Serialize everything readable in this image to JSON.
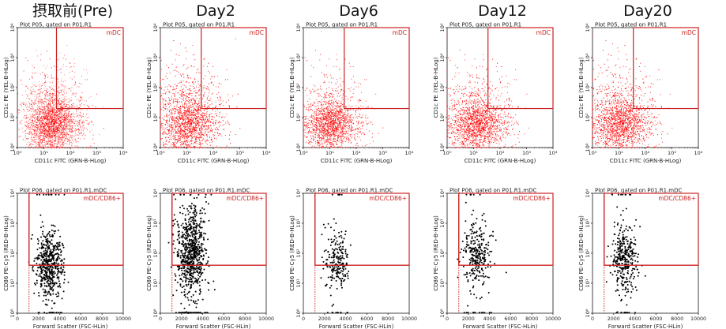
{
  "chart_data": [
    {
      "type": "scatter",
      "title": "摂取前(Pre)",
      "panels": [
        {
          "plot_title": "Plot P05, gated on P01.R1",
          "xlabel": "CD11c FITC (GRN-B-HLog)",
          "ylabel": "CD1c PE (YEL-B-HLog)",
          "xscale": "log",
          "yscale": "log",
          "xlim": [
            1,
            10000
          ],
          "ylim": [
            1,
            10000
          ],
          "x_ticks": [
            "10⁰",
            "10¹",
            "10²",
            "10³",
            "10⁴"
          ],
          "y_ticks": [
            "10⁰",
            "10¹",
            "10²",
            "10³",
            "10⁴"
          ],
          "gate": {
            "label": "mDC",
            "x_min": 30,
            "y_min": 20
          },
          "point_color": "#ff0000",
          "population": {
            "center": [
              18,
              6
            ],
            "spread": [
              0.45,
              0.45
            ],
            "count": 4000,
            "upper_tail": 0.12
          }
        },
        {
          "plot_title": "Plot P06, gated on P01.R1.mDC",
          "xlabel": "Forward Scatter (FSC-HLin)",
          "ylabel": "CD86 PE-Cy5 (RED-B-HLog)",
          "xscale": "linear",
          "yscale": "log",
          "xlim": [
            0,
            10000
          ],
          "ylim": [
            1,
            10000
          ],
          "x_ticks": [
            "0",
            "2000",
            "4000",
            "6000",
            "8000",
            "10000"
          ],
          "y_ticks": [
            "10⁰",
            "10¹",
            "10²",
            "10³",
            "10⁴"
          ],
          "gate": {
            "label": "mDC/CD86+",
            "x_min": 1100,
            "y_min": 40
          },
          "point_color": "#000000",
          "population": {
            "center": [
              3000,
              40
            ],
            "spread": [
              650,
              0.55
            ],
            "count": 550
          }
        }
      ]
    },
    {
      "type": "scatter",
      "title": "Day2",
      "panels": [
        {
          "plot_title": "Plot P05, gated on P01.R1",
          "xlabel": "CD11c FITC (GRN-B-HLog)",
          "ylabel": "CD1c PE (YEL-B-HLog)",
          "xscale": "log",
          "yscale": "log",
          "xlim": [
            1,
            10000
          ],
          "ylim": [
            1,
            10000
          ],
          "x_ticks": [
            "10⁰",
            "10¹",
            "10²",
            "10³",
            "10⁴"
          ],
          "y_ticks": [
            "10⁰",
            "10¹",
            "10²",
            "10³",
            "10⁴"
          ],
          "gate": {
            "label": "mDC",
            "x_min": 35,
            "y_min": 20
          },
          "point_color": "#ff0000",
          "population": {
            "center": [
              10,
              6
            ],
            "spread": [
              0.5,
              0.45
            ],
            "count": 4200,
            "upper_tail": 0.18
          }
        },
        {
          "plot_title": "Plot P06, gated on P01.R1.mDC",
          "xlabel": "Forward Scatter (FSC-HLin)",
          "ylabel": "CD86 PE-Cy5 (RED-B-HLog)",
          "xscale": "linear",
          "yscale": "log",
          "xlim": [
            0,
            10000
          ],
          "ylim": [
            1,
            10000
          ],
          "x_ticks": [
            "0",
            "2000",
            "4000",
            "6000",
            "8000",
            "10000"
          ],
          "y_ticks": [
            "10⁰",
            "10¹",
            "10²",
            "10³",
            "10⁴"
          ],
          "gate": {
            "label": "mDC/CD86+",
            "x_min": 1100,
            "y_min": 40
          },
          "point_color": "#000000",
          "population": {
            "center": [
              2900,
              120
            ],
            "spread": [
              700,
              0.75
            ],
            "count": 750
          }
        }
      ]
    },
    {
      "type": "scatter",
      "title": "Day6",
      "panels": [
        {
          "plot_title": "Plot P05, gated on P01.R1",
          "xlabel": "CD11c FITC (GRN-B-HLog)",
          "ylabel": "CD1c PE (YEL-B-HLog)",
          "xscale": "log",
          "yscale": "log",
          "xlim": [
            1,
            10000
          ],
          "ylim": [
            1,
            10000
          ],
          "x_ticks": [
            "10⁰",
            "10¹",
            "10²",
            "10³",
            "10⁴"
          ],
          "y_ticks": [
            "10⁰",
            "10¹",
            "10²",
            "10³",
            "10⁴"
          ],
          "gate": {
            "label": "mDC",
            "x_min": 35,
            "y_min": 20
          },
          "point_color": "#ff0000",
          "population": {
            "center": [
              10,
              6
            ],
            "spread": [
              0.45,
              0.4
            ],
            "count": 3500,
            "upper_tail": 0.1
          }
        },
        {
          "plot_title": "Plot P06, gated on P01.R1.mDC",
          "xlabel": "Forward Scatter (FSC-HLin)",
          "ylabel": "CD86 PE-Cy5 (RED-B-HLog)",
          "xscale": "linear",
          "yscale": "log",
          "xlim": [
            0,
            10000
          ],
          "ylim": [
            1,
            10000
          ],
          "x_ticks": [
            "0",
            "2000",
            "4000",
            "6000",
            "8000",
            "10000"
          ],
          "y_ticks": [
            "10⁰",
            "10¹",
            "10²",
            "10³",
            "10⁴"
          ],
          "gate": {
            "label": "mDC/CD86+",
            "x_min": 1100,
            "y_min": 40
          },
          "point_color": "#000000",
          "population": {
            "center": [
              3200,
              60
            ],
            "spread": [
              600,
              0.55
            ],
            "count": 230
          }
        }
      ]
    },
    {
      "type": "scatter",
      "title": "Day12",
      "panels": [
        {
          "plot_title": "Plot P05, gated on P01.R1",
          "xlabel": "CD11c FITC (GRN-B-HLog)",
          "ylabel": "CD1c PE (YEL-B-HLog)",
          "xscale": "log",
          "yscale": "log",
          "xlim": [
            1,
            10000
          ],
          "ylim": [
            1,
            10000
          ],
          "x_ticks": [
            "10⁰",
            "10¹",
            "10²",
            "10³",
            "10⁴"
          ],
          "y_ticks": [
            "10⁰",
            "10¹",
            "10²",
            "10³",
            "10⁴"
          ],
          "gate": {
            "label": "mDC",
            "x_min": 35,
            "y_min": 20
          },
          "point_color": "#ff0000",
          "population": {
            "center": [
              12,
              6
            ],
            "spread": [
              0.5,
              0.42
            ],
            "count": 4000,
            "upper_tail": 0.12
          }
        },
        {
          "plot_title": "Plot P06, gated on P01.R1.mDC",
          "xlabel": "Forward Scatter (FSC-HLin)",
          "ylabel": "CD86 PE-Cy5 (RED-B-HLog)",
          "xscale": "linear",
          "yscale": "log",
          "xlim": [
            0,
            10000
          ],
          "ylim": [
            1,
            10000
          ],
          "x_ticks": [
            "0",
            "2000",
            "4000",
            "6000",
            "8000",
            "10000"
          ],
          "y_ticks": [
            "10⁰",
            "10¹",
            "10²",
            "10³",
            "10⁴"
          ],
          "gate": {
            "label": "mDC/CD86+",
            "x_min": 1100,
            "y_min": 40
          },
          "point_color": "#000000",
          "population": {
            "center": [
              2800,
              80
            ],
            "spread": [
              650,
              0.6
            ],
            "count": 300
          }
        }
      ]
    },
    {
      "type": "scatter",
      "title": "Day20",
      "panels": [
        {
          "plot_title": "Plot P05, gated on P01.R1",
          "xlabel": "CD11c FITC (GRN-B-HLog)",
          "ylabel": "CD1c PE (YEL-B-HLog)",
          "xscale": "log",
          "yscale": "log",
          "xlim": [
            1,
            10000
          ],
          "ylim": [
            1,
            10000
          ],
          "x_ticks": [
            "10⁰",
            "10¹",
            "10²",
            "10³",
            "10⁴"
          ],
          "y_ticks": [
            "10⁰",
            "10¹",
            "10²",
            "10³",
            "10⁴"
          ],
          "gate": {
            "label": "mDC",
            "x_min": 35,
            "y_min": 20
          },
          "point_color": "#ff0000",
          "population": {
            "center": [
              10,
              6
            ],
            "spread": [
              0.5,
              0.42
            ],
            "count": 4000,
            "upper_tail": 0.15
          }
        },
        {
          "plot_title": "Plot P06, gated on P01.R1.mDC",
          "xlabel": "Forward Scatter (FSC-HLin)",
          "ylabel": "CD86 PE-Cy5 (RED-B-HLog)",
          "xscale": "linear",
          "yscale": "log",
          "xlim": [
            0,
            10000
          ],
          "ylim": [
            1,
            10000
          ],
          "x_ticks": [
            "0",
            "2000",
            "4000",
            "6000",
            "8000",
            "10000"
          ],
          "y_ticks": [
            "10⁰",
            "10¹",
            "10²",
            "10³",
            "10⁴"
          ],
          "gate": {
            "label": "mDC/CD86+",
            "x_min": 1100,
            "y_min": 40
          },
          "point_color": "#000000",
          "population": {
            "center": [
              3000,
              70
            ],
            "spread": [
              600,
              0.6
            ],
            "count": 350
          }
        }
      ]
    }
  ],
  "colors": {
    "gate": "#cc2222",
    "frame": "#444444"
  }
}
